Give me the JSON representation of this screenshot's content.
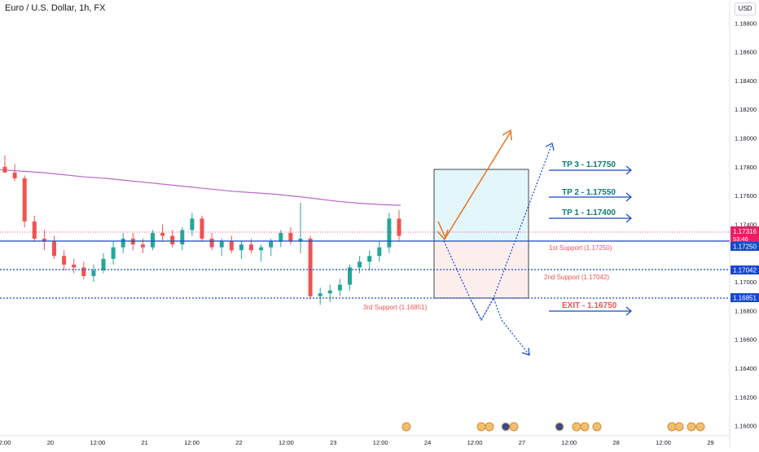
{
  "header": {
    "title": "Euro / U.S. Dollar, 1h, FX",
    "currency_button": "USD"
  },
  "colors": {
    "up": "#26a69a",
    "down": "#ef5350",
    "ma": "#ba68c8",
    "axis_text": "#131722",
    "support_line": "#1848cc",
    "target_text": "#0c7c70",
    "support_text": "#ef5350",
    "arrow_blue": "#1848cc",
    "arrow_orange": "#e8731a",
    "price_badge": "#e91e63",
    "box_top": "#e3f6fc",
    "box_bottom": "#fdeeee"
  },
  "axis": {
    "y_ticks": [
      "1.18800",
      "1.18600",
      "1.18400",
      "1.18200",
      "1.18000",
      "1.17800",
      "1.17600",
      "1.17400",
      "1.17000",
      "1.16800",
      "1.16600",
      "1.16400",
      "1.16200",
      "1.16000"
    ],
    "x_ticks": [
      "12:00",
      "20",
      "12:00",
      "21",
      "12:00",
      "22",
      "12:00",
      "23",
      "12:00",
      "24",
      "12:00",
      "27",
      "12:00",
      "28",
      "12:00",
      "29"
    ]
  },
  "price_labels": {
    "current_price": "1.17316",
    "countdown": "53:46",
    "support_1": "1.17250",
    "support_2": "1.17042",
    "support_3": "1.16851"
  },
  "annotations": {
    "tp3": "TP 3 - 1.17750",
    "tp2": "TP 2 - 1.17550",
    "tp1": "TP 1 - 1.17400",
    "support1": "1st Support (1.17250)",
    "support2": "2nd Support (1.17042)",
    "support3": "3rd Support (1.16851)",
    "exit": "EXIT - 1.16750"
  },
  "chart_data": {
    "type": "candlestick",
    "title": "Euro / U.S. Dollar, 1h, FX",
    "ylim": [
      1.1593,
      1.1896
    ],
    "scale": "linear",
    "grid": false,
    "moving_average": [
      1.1778,
      1.1777,
      1.1776,
      1.17745,
      1.1773,
      1.1772,
      1.17705,
      1.1769,
      1.17675,
      1.1766,
      1.17645,
      1.1763,
      1.1762,
      1.1761,
      1.17595,
      1.17578,
      1.1756,
      1.17547,
      1.17538,
      1.17532
    ],
    "candles": [
      [
        1.178,
        1.1788,
        1.1776,
        1.1776
      ],
      [
        1.1776,
        1.1782,
        1.177,
        1.1772
      ],
      [
        1.1772,
        1.1774,
        1.1738,
        1.1742
      ],
      [
        1.1742,
        1.1746,
        1.1728,
        1.173
      ],
      [
        1.173,
        1.1736,
        1.1722,
        1.1728
      ],
      [
        1.1728,
        1.1732,
        1.1716,
        1.1718
      ],
      [
        1.1718,
        1.1722,
        1.1708,
        1.1712
      ],
      [
        1.1712,
        1.1716,
        1.1706,
        1.171
      ],
      [
        1.171,
        1.1714,
        1.1702,
        1.1704
      ],
      [
        1.1704,
        1.1712,
        1.17,
        1.1708
      ],
      [
        1.1708,
        1.172,
        1.1706,
        1.1716
      ],
      [
        1.1716,
        1.1728,
        1.1712,
        1.1724
      ],
      [
        1.1724,
        1.1734,
        1.172,
        1.173
      ],
      [
        1.173,
        1.1734,
        1.1722,
        1.1726
      ],
      [
        1.1726,
        1.173,
        1.172,
        1.1724
      ],
      [
        1.1724,
        1.1736,
        1.1722,
        1.1734
      ],
      [
        1.1734,
        1.174,
        1.1728,
        1.1732
      ],
      [
        1.1732,
        1.1736,
        1.1724,
        1.1726
      ],
      [
        1.1726,
        1.1738,
        1.1722,
        1.1736
      ],
      [
        1.1736,
        1.1748,
        1.1732,
        1.1744
      ],
      [
        1.1744,
        1.1746,
        1.1728,
        1.173
      ],
      [
        1.173,
        1.1734,
        1.1722,
        1.1724
      ],
      [
        1.1724,
        1.173,
        1.1718,
        1.1728
      ],
      [
        1.1728,
        1.1732,
        1.172,
        1.1722
      ],
      [
        1.1722,
        1.1728,
        1.1716,
        1.1726
      ],
      [
        1.1726,
        1.173,
        1.172,
        1.1722
      ],
      [
        1.1722,
        1.1726,
        1.1714,
        1.1724
      ],
      [
        1.1724,
        1.173,
        1.1718,
        1.1728
      ],
      [
        1.1728,
        1.1736,
        1.1724,
        1.1734
      ],
      [
        1.1734,
        1.1738,
        1.1726,
        1.1728
      ],
      [
        1.1728,
        1.1755,
        1.172,
        1.173
      ],
      [
        1.173,
        1.1732,
        1.1688,
        1.169
      ],
      [
        1.169,
        1.1696,
        1.1684,
        1.1692
      ],
      [
        1.1692,
        1.1698,
        1.1686,
        1.1694
      ],
      [
        1.1694,
        1.1702,
        1.169,
        1.1698
      ],
      [
        1.1698,
        1.1712,
        1.1694,
        1.171
      ],
      [
        1.171,
        1.1718,
        1.1706,
        1.1714
      ],
      [
        1.1714,
        1.1722,
        1.1708,
        1.1718
      ],
      [
        1.1718,
        1.1728,
        1.1714,
        1.1724
      ],
      [
        1.1724,
        1.1748,
        1.172,
        1.1744
      ],
      [
        1.1744,
        1.175,
        1.1728,
        1.1732
      ]
    ],
    "horizontal_levels": [
      1.1725,
      1.17042,
      1.16851
    ],
    "trade_box": {
      "top": 1.1775,
      "entry": 1.1725,
      "bottom": 1.16851
    },
    "projection_paths": [
      {
        "style": "solid-orange",
        "points": [
          [
            1.174,
            1
          ],
          [
            1.1725,
            2
          ],
          [
            1.1802,
            8
          ]
        ]
      },
      {
        "style": "dotted-blue",
        "points": [
          [
            1.1725,
            0
          ],
          [
            1.16851,
            3
          ],
          [
            1.167,
            4
          ],
          [
            1.16851,
            5
          ],
          [
            1.1795,
            11
          ]
        ]
      },
      {
        "style": "dotted-blue",
        "points": [
          [
            1.16851,
            5
          ],
          [
            1.167,
            6
          ],
          [
            1.16851,
            7
          ],
          [
            1.1645,
            9
          ]
        ]
      }
    ]
  }
}
